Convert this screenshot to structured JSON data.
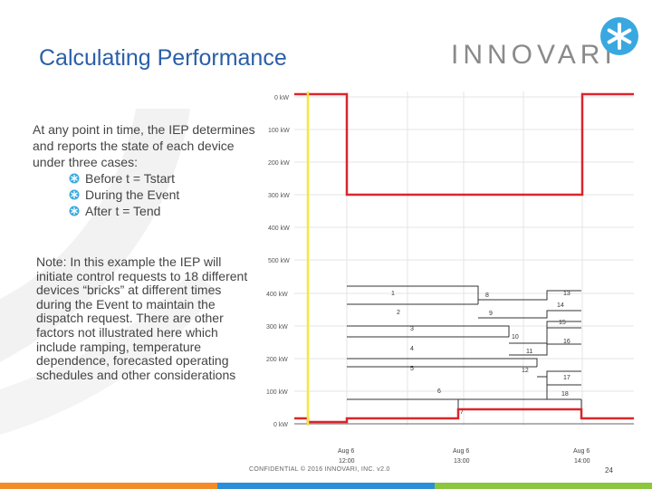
{
  "slide": {
    "title": "Calculating Performance",
    "logo_text": "INNOVARI",
    "intro_text": "At any point in time, the IEP determines and reports the state of each device under three cases:",
    "cases": [
      "Before t = Tstart",
      "During the Event",
      "After t = Tend"
    ],
    "note_text": "Note:  In this example the IEP will initiate control requests to 18 different devices “bricks” at different times during the Event to maintain the dispatch request.  There are other factors not illustrated here which include ramping, temperature dependence, forecasted operating schedules and other considerations",
    "footer": "CONFIDENTIAL © 2016 INNOVARI, INC. v2.0",
    "page_number": "24",
    "colors": {
      "title": "#2a5fa8",
      "accent_red": "#d9262c",
      "yellow_marker": "#f2ea3a",
      "bar_orange": "#f28c28",
      "bar_blue": "#2a8fd6",
      "bar_green": "#8cc63f",
      "logo_mark": "#3aa8e0"
    }
  },
  "chart_data": {
    "type": "line",
    "upper_axis_labels": [
      "0 kW",
      "100 kW",
      "200 kW",
      "300 kW",
      "400 kW",
      "500 kW"
    ],
    "lower_axis_labels": [
      "400 kW",
      "300 kW",
      "200 kW",
      "100 kW",
      "0 kW"
    ],
    "x_tick_labels": [
      {
        "date": "Aug 6",
        "time": "12:00"
      },
      {
        "date": "Aug 6",
        "time": "13:00"
      },
      {
        "date": "Aug 6",
        "time": "14:00"
      }
    ],
    "brick_labels": [
      "1",
      "2",
      "3",
      "4",
      "5",
      "6",
      "7",
      "8",
      "9",
      "10",
      "11",
      "12",
      "13",
      "14",
      "15",
      "16",
      "17",
      "18"
    ]
  }
}
